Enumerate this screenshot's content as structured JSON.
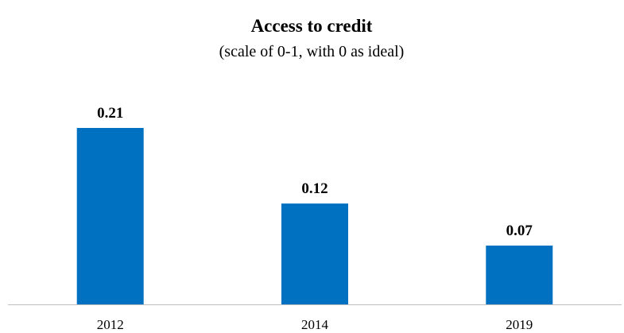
{
  "chart_data": {
    "type": "bar",
    "title": "Access to credit",
    "subtitle": "(scale of 0-1, with 0 as ideal)",
    "categories": [
      "2012",
      "2014",
      "2019"
    ],
    "values": [
      0.21,
      0.12,
      0.07
    ],
    "data_labels": [
      "0.21",
      "0.12",
      "0.07"
    ],
    "xlabel": "",
    "ylabel": "",
    "ylim": [
      0,
      0.21
    ],
    "grid": false,
    "legend": "none",
    "bar_color": "#0070C0",
    "axis_color": "#BFBFBF"
  }
}
